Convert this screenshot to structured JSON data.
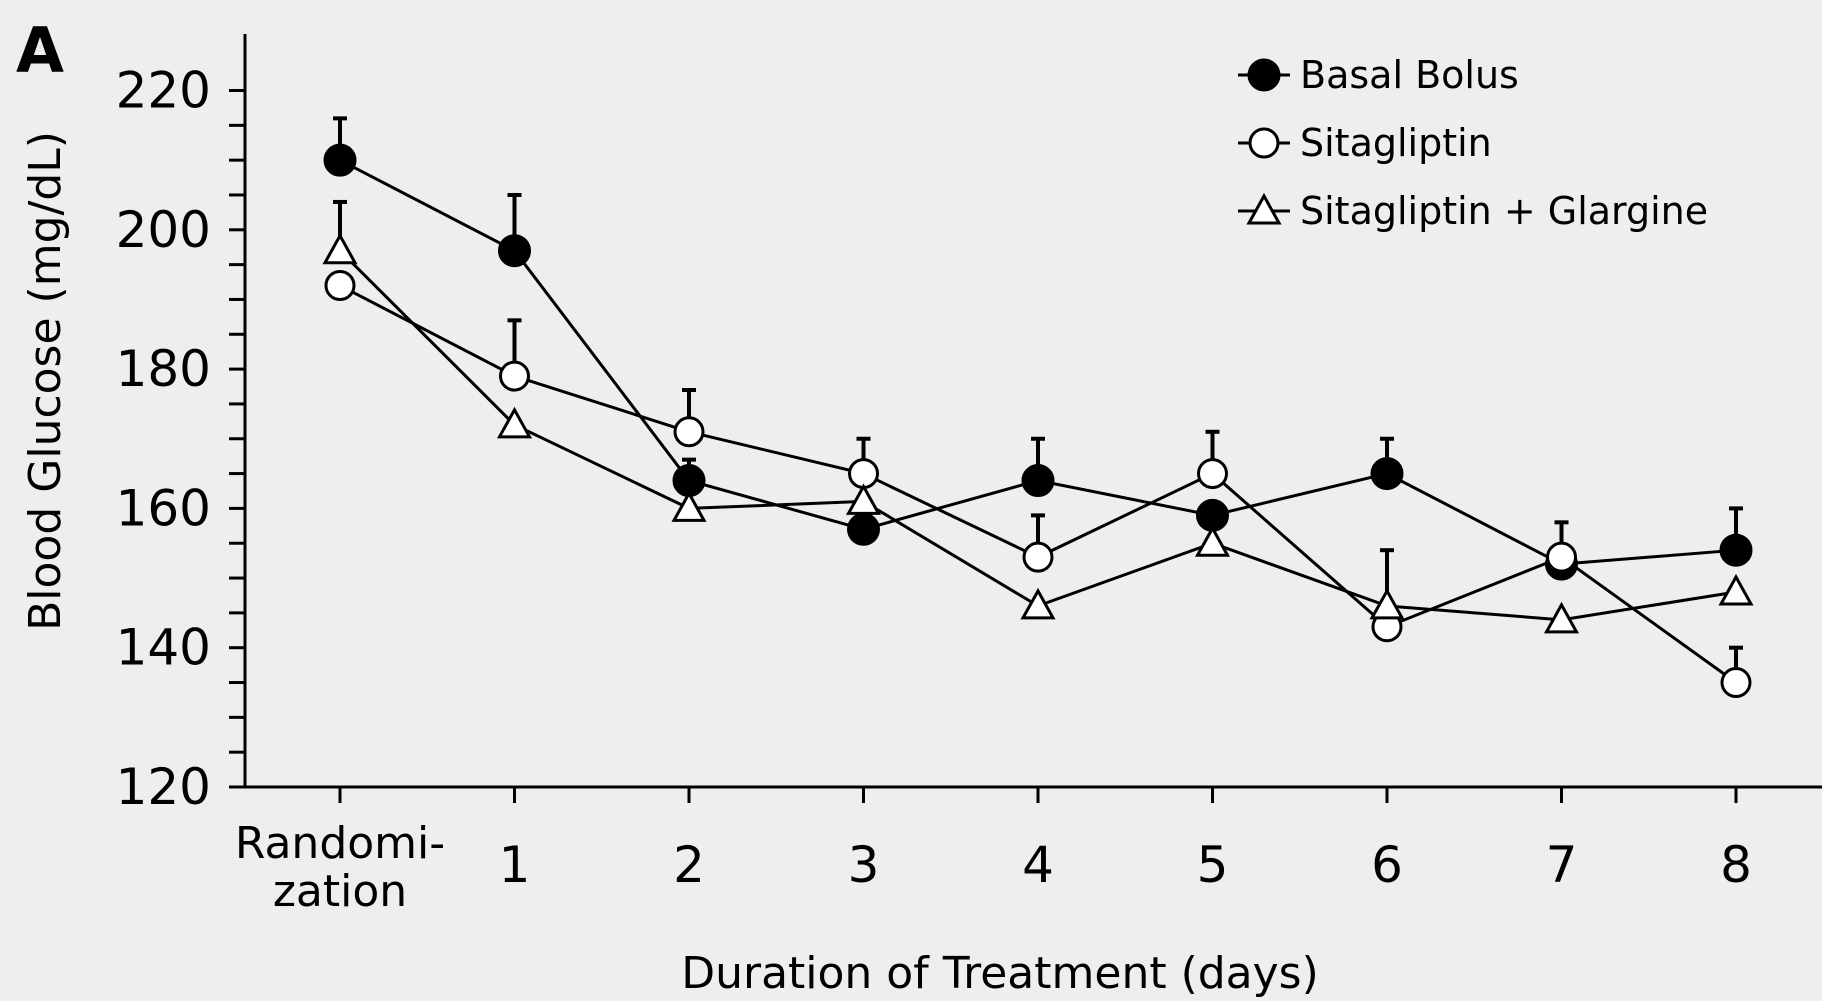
{
  "chart_data": {
    "type": "line",
    "panel_label": "A",
    "title": "",
    "xlabel": "Duration of Treatment  (days)",
    "ylabel": "Blood Glucose (mg/dL)",
    "ylim": [
      120,
      220
    ],
    "yticks": [
      120,
      140,
      160,
      180,
      200,
      220
    ],
    "y_minor_step": 5,
    "categories": [
      [
        "Randomi-",
        "zation"
      ],
      [
        "1"
      ],
      [
        "2"
      ],
      [
        "3"
      ],
      [
        "4"
      ],
      [
        "5"
      ],
      [
        "6"
      ],
      [
        "7"
      ],
      [
        "8"
      ]
    ],
    "grid": false,
    "legend_position": "top-right",
    "series": [
      {
        "name": "Basal Bolus",
        "marker": "filled-circle",
        "values": [
          210,
          197,
          164,
          157,
          164,
          159,
          165,
          152,
          154
        ],
        "error": [
          6,
          8,
          3,
          0,
          6,
          0,
          5,
          0,
          6
        ]
      },
      {
        "name": "Sitagliptin",
        "marker": "open-circle",
        "values": [
          192,
          179,
          171,
          165,
          153,
          165,
          143,
          153,
          135
        ],
        "error": [
          0,
          8,
          6,
          5,
          6,
          6,
          11,
          5,
          5
        ]
      },
      {
        "name": "Sitagliptin + Glargine",
        "marker": "open-triangle",
        "values": [
          197,
          172,
          160,
          161,
          146,
          155,
          146,
          144,
          148
        ],
        "error": [
          7,
          0,
          0,
          0,
          0,
          0,
          0,
          0,
          0
        ]
      }
    ]
  }
}
